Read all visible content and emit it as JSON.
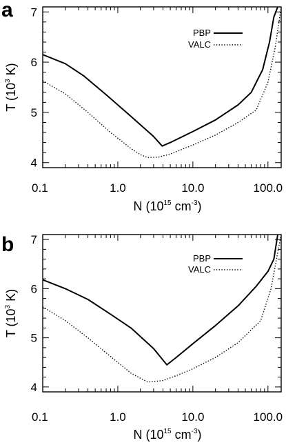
{
  "chart_data": [
    {
      "type": "line",
      "panel": "a",
      "xlabel": "N (10",
      "xlabel_sup": "15",
      "xlabel_unit": " cm",
      "xlabel_unit_sup": "-3",
      "xlabel_close": ")",
      "ylabel": "T (10",
      "ylabel_sup": "3",
      "ylabel_close": " K)",
      "xscale": "log",
      "xlim": [
        0.1,
        150
      ],
      "ylim": [
        3.9,
        7.1
      ],
      "xticks": [
        {
          "v": 0.1,
          "label": "0.1"
        },
        {
          "v": 1,
          "label": "1.0"
        },
        {
          "v": 10,
          "label": "10.0"
        },
        {
          "v": 100,
          "label": "100.0"
        }
      ],
      "yticks": [
        {
          "v": 4,
          "label": "4"
        },
        {
          "v": 5,
          "label": "5"
        },
        {
          "v": 6,
          "label": "6"
        },
        {
          "v": 7,
          "label": "7"
        }
      ],
      "legend": "top-right",
      "series": [
        {
          "name": "PBP",
          "style": "solid",
          "x": [
            0.1,
            0.2,
            0.35,
            0.7,
            1.5,
            3.0,
            3.9,
            5.0,
            10,
            20,
            40,
            60,
            85,
            105,
            120,
            135
          ],
          "y": [
            6.15,
            5.97,
            5.73,
            5.35,
            4.92,
            4.52,
            4.33,
            4.4,
            4.62,
            4.85,
            5.15,
            5.4,
            5.85,
            6.4,
            6.9,
            7.1
          ]
        },
        {
          "name": "VALC",
          "style": "dotted",
          "x": [
            0.1,
            0.2,
            0.4,
            0.8,
            1.5,
            2.0,
            2.5,
            3.5,
            5.0,
            10,
            20,
            40,
            70,
            100,
            125,
            150
          ],
          "y": [
            5.63,
            5.37,
            5.0,
            4.6,
            4.28,
            4.16,
            4.1,
            4.11,
            4.17,
            4.35,
            4.55,
            4.8,
            5.05,
            5.6,
            6.3,
            7.1
          ]
        }
      ]
    },
    {
      "type": "line",
      "panel": "b",
      "xlabel": "N (10",
      "xlabel_sup": "15",
      "xlabel_unit": " cm",
      "xlabel_unit_sup": "-3",
      "xlabel_close": ")",
      "ylabel": "T (10",
      "ylabel_sup": "3",
      "ylabel_close": " K)",
      "xscale": "log",
      "xlim": [
        0.1,
        150
      ],
      "ylim": [
        3.9,
        7.1
      ],
      "xticks": [
        {
          "v": 0.1,
          "label": "0.1"
        },
        {
          "v": 1,
          "label": "1.0"
        },
        {
          "v": 10,
          "label": "10.0"
        },
        {
          "v": 100,
          "label": "100.0"
        }
      ],
      "yticks": [
        {
          "v": 4,
          "label": "4"
        },
        {
          "v": 5,
          "label": "5"
        },
        {
          "v": 6,
          "label": "6"
        },
        {
          "v": 7,
          "label": "7"
        }
      ],
      "legend": "top-right",
      "series": [
        {
          "name": "PBP",
          "style": "solid",
          "x": [
            0.1,
            0.2,
            0.4,
            0.8,
            1.5,
            3.0,
            4.5,
            6.0,
            10,
            20,
            40,
            70,
            100,
            120,
            135
          ],
          "y": [
            6.18,
            6.0,
            5.78,
            5.48,
            5.2,
            4.78,
            4.45,
            4.6,
            4.88,
            5.25,
            5.65,
            6.05,
            6.35,
            6.6,
            7.1
          ]
        },
        {
          "name": "VALC",
          "style": "dotted",
          "x": [
            0.1,
            0.2,
            0.4,
            0.8,
            1.5,
            2.5,
            4.0,
            6.0,
            10,
            20,
            40,
            80,
            110,
            130,
            150
          ],
          "y": [
            5.63,
            5.35,
            5.0,
            4.62,
            4.28,
            4.1,
            4.13,
            4.23,
            4.37,
            4.6,
            4.9,
            5.35,
            6.0,
            6.6,
            7.1
          ]
        }
      ]
    }
  ]
}
